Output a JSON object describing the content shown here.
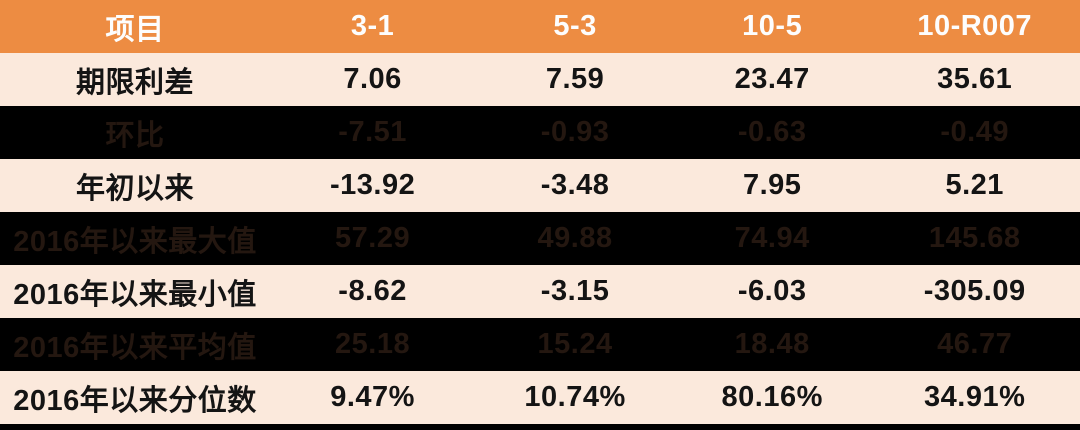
{
  "table": {
    "columns": [
      "项目",
      "3-1",
      "5-3",
      "10-5",
      "10-R007"
    ],
    "rows": [
      {
        "label": "期限利差",
        "values": [
          "7.06",
          "7.59",
          "23.47",
          "35.61"
        ],
        "variant": "light"
      },
      {
        "label": "环比",
        "values": [
          "-7.51",
          "-0.93",
          "-0.63",
          "-0.49"
        ],
        "variant": "dark"
      },
      {
        "label": "年初以来",
        "values": [
          "-13.92",
          "-3.48",
          "7.95",
          "5.21"
        ],
        "variant": "light"
      },
      {
        "label": "2016年以来最大值",
        "values": [
          "57.29",
          "49.88",
          "74.94",
          "145.68"
        ],
        "variant": "dark"
      },
      {
        "label": "2016年以来最小值",
        "values": [
          "-8.62",
          "-3.15",
          "-6.03",
          "-305.09"
        ],
        "variant": "light"
      },
      {
        "label": "2016年以来平均值",
        "values": [
          "25.18",
          "15.24",
          "18.48",
          "46.77"
        ],
        "variant": "dark"
      },
      {
        "label": "2016年以来分位数",
        "values": [
          "9.47%",
          "10.74%",
          "80.16%",
          "34.91%"
        ],
        "variant": "light"
      }
    ],
    "column_widths_pct": [
      25,
      19,
      18.5,
      18,
      19.5
    ]
  },
  "colors": {
    "header_bg": "#ED8C42",
    "header_text": "#FDFDFD",
    "light_row_bg": "#FBE9DC",
    "light_row_text": "#141414",
    "dark_row_bg": "#000000",
    "dark_row_text": "#241710",
    "bottom_bar": "#000000"
  },
  "chart_data": {
    "type": "table",
    "title": "",
    "columns": [
      "项目",
      "3-1",
      "5-3",
      "10-5",
      "10-R007"
    ],
    "rows": [
      [
        "期限利差",
        7.06,
        7.59,
        23.47,
        35.61
      ],
      [
        "环比",
        -7.51,
        -0.93,
        -0.63,
        -0.49
      ],
      [
        "年初以来",
        -13.92,
        -3.48,
        7.95,
        5.21
      ],
      [
        "2016年以来最大值",
        57.29,
        49.88,
        74.94,
        145.68
      ],
      [
        "2016年以来最小值",
        -8.62,
        -3.15,
        -6.03,
        -305.09
      ],
      [
        "2016年以来平均值",
        25.18,
        15.24,
        18.48,
        46.77
      ],
      [
        "2016年以来分位数",
        "9.47%",
        "10.74%",
        "80.16%",
        "34.91%"
      ]
    ],
    "layout_hints": {
      "header_style": "orange band, white bold text",
      "row_striping": "alternating peach and black rows",
      "alignment": "all cells centered"
    }
  }
}
